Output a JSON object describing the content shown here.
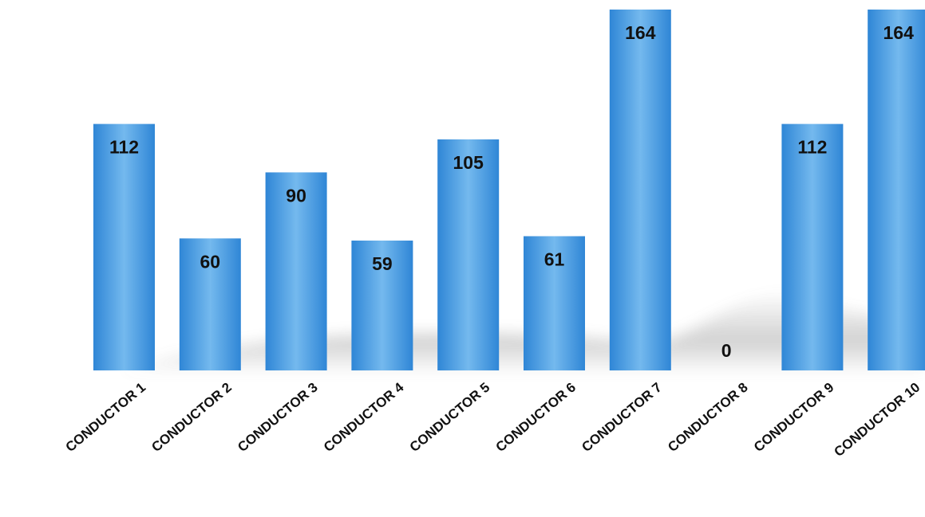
{
  "chart_data": {
    "type": "bar",
    "categories": [
      "CONDUCTOR 1",
      "CONDUCTOR 2",
      "CONDUCTOR 3",
      "CONDUCTOR 4",
      "CONDUCTOR 5",
      "CONDUCTOR 6",
      "CONDUCTOR 7",
      "CONDUCTOR 8",
      "CONDUCTOR 9",
      "CONDUCTOR 10"
    ],
    "values": [
      112,
      60,
      90,
      59,
      105,
      61,
      164,
      0,
      112,
      164
    ],
    "ylim": [
      0,
      164
    ],
    "grid": false,
    "legend": "none",
    "colors": {
      "bar_light": "#74b9ee",
      "bar_dark": "#2f86d6",
      "text": "#111111",
      "shadow": "#6e6e6e"
    }
  }
}
